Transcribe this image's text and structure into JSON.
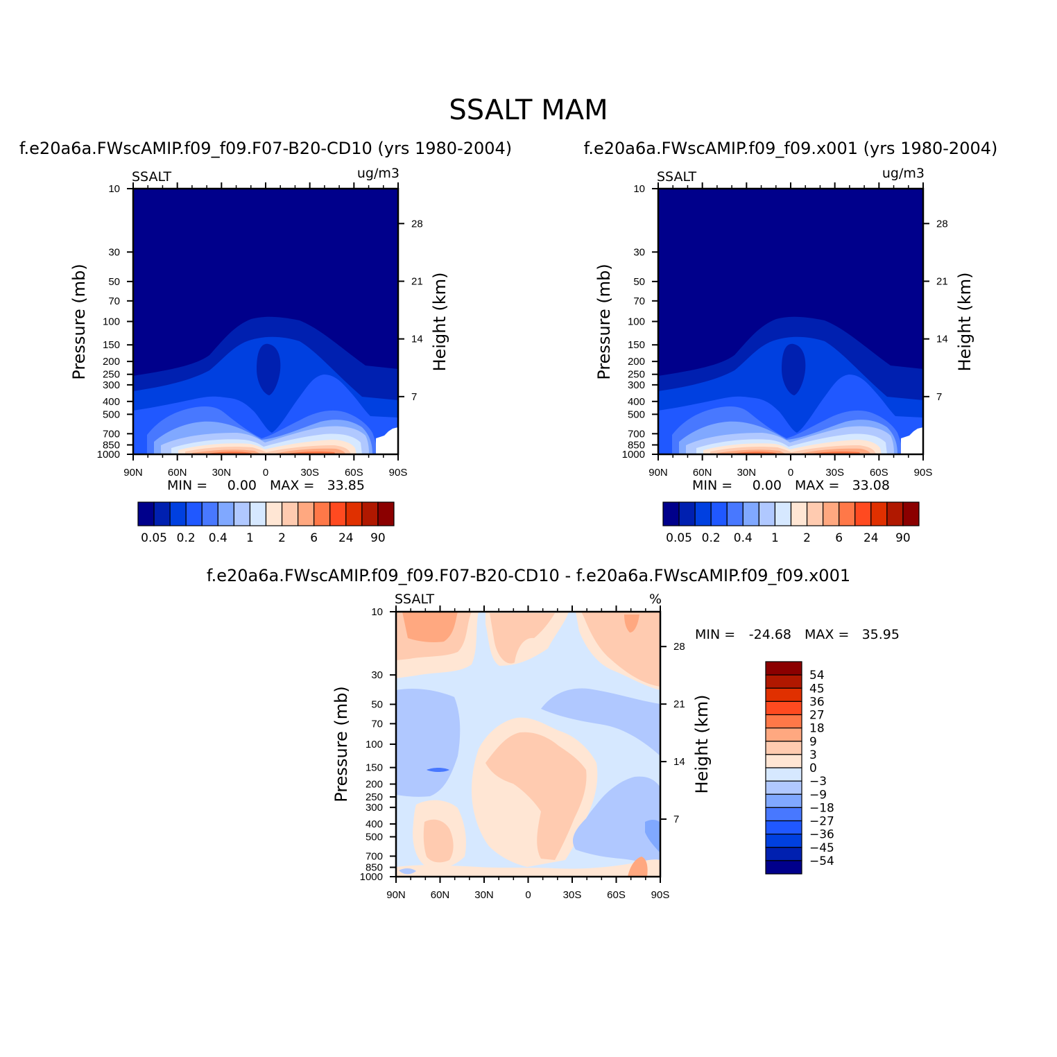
{
  "figure_title": "SSALT MAM",
  "chart_data": [
    {
      "type": "heatmap",
      "title": "f.e20a6a.FWscAMIP.f09_f09.F07-B20-CD10 (yrs 1980-2004)",
      "left_label": "SSALT",
      "right_label": "ug/m3",
      "ylabel": "Pressure (mb)",
      "ylabel_right": "Height (km)",
      "x_ticks": [
        "90N",
        "60N",
        "30N",
        "0",
        "30S",
        "60S",
        "90S"
      ],
      "y_ticks": [
        "10",
        "30",
        "50",
        "70",
        "100",
        "150",
        "200",
        "250",
        "300",
        "400",
        "500",
        "700",
        "850",
        "1000"
      ],
      "y_ticks_right": [
        "28",
        "21",
        "14",
        "7"
      ],
      "min_label": "MIN =",
      "min_value": "0.00",
      "max_label": "MAX =",
      "max_value": "33.85",
      "colorbar_labels": [
        "0.05",
        "0.2",
        "0.4",
        "1",
        "2",
        "6",
        "24",
        "90"
      ]
    },
    {
      "type": "heatmap",
      "title": "f.e20a6a.FWscAMIP.f09_f09.x001 (yrs 1980-2004)",
      "left_label": "SSALT",
      "right_label": "ug/m3",
      "ylabel": "Pressure (mb)",
      "ylabel_right": "Height (km)",
      "x_ticks": [
        "90N",
        "60N",
        "30N",
        "0",
        "30S",
        "60S",
        "90S"
      ],
      "y_ticks": [
        "10",
        "30",
        "50",
        "70",
        "100",
        "150",
        "200",
        "250",
        "300",
        "400",
        "500",
        "700",
        "850",
        "1000"
      ],
      "y_ticks_right": [
        "28",
        "21",
        "14",
        "7"
      ],
      "min_label": "MIN =",
      "min_value": "0.00",
      "max_label": "MAX =",
      "max_value": "33.08",
      "colorbar_labels": [
        "0.05",
        "0.2",
        "0.4",
        "1",
        "2",
        "6",
        "24",
        "90"
      ]
    },
    {
      "type": "heatmap",
      "title": "f.e20a6a.FWscAMIP.f09_f09.F07-B20-CD10 - f.e20a6a.FWscAMIP.f09_f09.x001",
      "left_label": "SSALT",
      "right_label": "%",
      "ylabel": "Pressure (mb)",
      "ylabel_right": "Height (km)",
      "x_ticks": [
        "90N",
        "60N",
        "30N",
        "0",
        "30S",
        "60S",
        "90S"
      ],
      "y_ticks": [
        "10",
        "30",
        "50",
        "70",
        "100",
        "150",
        "200",
        "250",
        "300",
        "400",
        "500",
        "700",
        "850",
        "1000"
      ],
      "y_ticks_right": [
        "28",
        "21",
        "14",
        "7"
      ],
      "min_label": "MIN =",
      "min_value": "-24.68",
      "max_label": "MAX =",
      "max_value": "35.95",
      "colorbar_labels": [
        "54",
        "45",
        "36",
        "27",
        "18",
        "9",
        "3",
        "0",
        "-3",
        "-9",
        "-18",
        "-27",
        "-36",
        "-45",
        "-54"
      ]
    }
  ],
  "colors": {
    "abs_scale": [
      "#00008b",
      "#0020b0",
      "#0040e0",
      "#2058ff",
      "#4878ff",
      "#80a8ff",
      "#b0c8ff",
      "#d6e8ff",
      "#ffe6d4",
      "#ffcbb0",
      "#ffa880",
      "#ff7848",
      "#ff4a20",
      "#e03000",
      "#b01800",
      "#8b0000"
    ],
    "diff_scale": [
      "#8b0000",
      "#b01800",
      "#e03000",
      "#ff4a20",
      "#ff7848",
      "#ffa880",
      "#ffcbb0",
      "#ffe6d4",
      "#d6e8ff",
      "#b0c8ff",
      "#80a8ff",
      "#4878ff",
      "#2058ff",
      "#0040e0",
      "#0020b0",
      "#00008b"
    ]
  }
}
